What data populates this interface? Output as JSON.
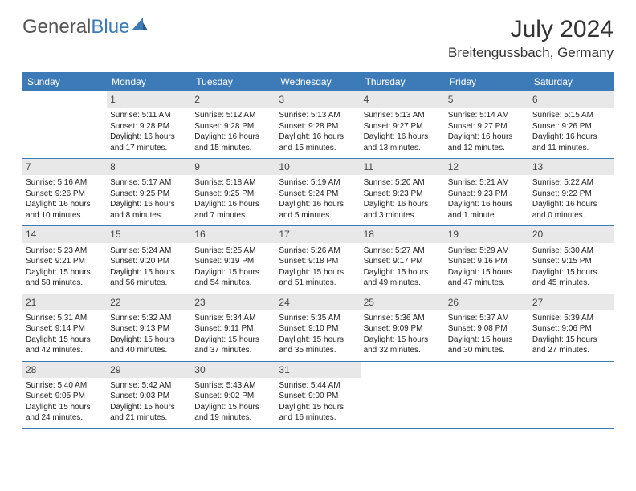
{
  "logo": {
    "word1": "General",
    "word2": "Blue"
  },
  "header": {
    "month_title": "July 2024",
    "location": "Breitengussbach, Germany"
  },
  "day_headers": [
    "Sunday",
    "Monday",
    "Tuesday",
    "Wednesday",
    "Thursday",
    "Friday",
    "Saturday"
  ],
  "colors": {
    "header_bg": "#3d7bb8",
    "header_fg": "#ffffff",
    "border": "#3d7bb8",
    "daynum_bg": "#e8e8e8",
    "text": "#222222",
    "logo_gray": "#555555",
    "logo_blue": "#3d7bb8"
  },
  "weeks": [
    [
      null,
      {
        "n": "1",
        "sunrise": "Sunrise: 5:11 AM",
        "sunset": "Sunset: 9:28 PM",
        "daylight": "Daylight: 16 hours and 17 minutes."
      },
      {
        "n": "2",
        "sunrise": "Sunrise: 5:12 AM",
        "sunset": "Sunset: 9:28 PM",
        "daylight": "Daylight: 16 hours and 15 minutes."
      },
      {
        "n": "3",
        "sunrise": "Sunrise: 5:13 AM",
        "sunset": "Sunset: 9:28 PM",
        "daylight": "Daylight: 16 hours and 15 minutes."
      },
      {
        "n": "4",
        "sunrise": "Sunrise: 5:13 AM",
        "sunset": "Sunset: 9:27 PM",
        "daylight": "Daylight: 16 hours and 13 minutes."
      },
      {
        "n": "5",
        "sunrise": "Sunrise: 5:14 AM",
        "sunset": "Sunset: 9:27 PM",
        "daylight": "Daylight: 16 hours and 12 minutes."
      },
      {
        "n": "6",
        "sunrise": "Sunrise: 5:15 AM",
        "sunset": "Sunset: 9:26 PM",
        "daylight": "Daylight: 16 hours and 11 minutes."
      }
    ],
    [
      {
        "n": "7",
        "sunrise": "Sunrise: 5:16 AM",
        "sunset": "Sunset: 9:26 PM",
        "daylight": "Daylight: 16 hours and 10 minutes."
      },
      {
        "n": "8",
        "sunrise": "Sunrise: 5:17 AM",
        "sunset": "Sunset: 9:25 PM",
        "daylight": "Daylight: 16 hours and 8 minutes."
      },
      {
        "n": "9",
        "sunrise": "Sunrise: 5:18 AM",
        "sunset": "Sunset: 9:25 PM",
        "daylight": "Daylight: 16 hours and 7 minutes."
      },
      {
        "n": "10",
        "sunrise": "Sunrise: 5:19 AM",
        "sunset": "Sunset: 9:24 PM",
        "daylight": "Daylight: 16 hours and 5 minutes."
      },
      {
        "n": "11",
        "sunrise": "Sunrise: 5:20 AM",
        "sunset": "Sunset: 9:23 PM",
        "daylight": "Daylight: 16 hours and 3 minutes."
      },
      {
        "n": "12",
        "sunrise": "Sunrise: 5:21 AM",
        "sunset": "Sunset: 9:23 PM",
        "daylight": "Daylight: 16 hours and 1 minute."
      },
      {
        "n": "13",
        "sunrise": "Sunrise: 5:22 AM",
        "sunset": "Sunset: 9:22 PM",
        "daylight": "Daylight: 16 hours and 0 minutes."
      }
    ],
    [
      {
        "n": "14",
        "sunrise": "Sunrise: 5:23 AM",
        "sunset": "Sunset: 9:21 PM",
        "daylight": "Daylight: 15 hours and 58 minutes."
      },
      {
        "n": "15",
        "sunrise": "Sunrise: 5:24 AM",
        "sunset": "Sunset: 9:20 PM",
        "daylight": "Daylight: 15 hours and 56 minutes."
      },
      {
        "n": "16",
        "sunrise": "Sunrise: 5:25 AM",
        "sunset": "Sunset: 9:19 PM",
        "daylight": "Daylight: 15 hours and 54 minutes."
      },
      {
        "n": "17",
        "sunrise": "Sunrise: 5:26 AM",
        "sunset": "Sunset: 9:18 PM",
        "daylight": "Daylight: 15 hours and 51 minutes."
      },
      {
        "n": "18",
        "sunrise": "Sunrise: 5:27 AM",
        "sunset": "Sunset: 9:17 PM",
        "daylight": "Daylight: 15 hours and 49 minutes."
      },
      {
        "n": "19",
        "sunrise": "Sunrise: 5:29 AM",
        "sunset": "Sunset: 9:16 PM",
        "daylight": "Daylight: 15 hours and 47 minutes."
      },
      {
        "n": "20",
        "sunrise": "Sunrise: 5:30 AM",
        "sunset": "Sunset: 9:15 PM",
        "daylight": "Daylight: 15 hours and 45 minutes."
      }
    ],
    [
      {
        "n": "21",
        "sunrise": "Sunrise: 5:31 AM",
        "sunset": "Sunset: 9:14 PM",
        "daylight": "Daylight: 15 hours and 42 minutes."
      },
      {
        "n": "22",
        "sunrise": "Sunrise: 5:32 AM",
        "sunset": "Sunset: 9:13 PM",
        "daylight": "Daylight: 15 hours and 40 minutes."
      },
      {
        "n": "23",
        "sunrise": "Sunrise: 5:34 AM",
        "sunset": "Sunset: 9:11 PM",
        "daylight": "Daylight: 15 hours and 37 minutes."
      },
      {
        "n": "24",
        "sunrise": "Sunrise: 5:35 AM",
        "sunset": "Sunset: 9:10 PM",
        "daylight": "Daylight: 15 hours and 35 minutes."
      },
      {
        "n": "25",
        "sunrise": "Sunrise: 5:36 AM",
        "sunset": "Sunset: 9:09 PM",
        "daylight": "Daylight: 15 hours and 32 minutes."
      },
      {
        "n": "26",
        "sunrise": "Sunrise: 5:37 AM",
        "sunset": "Sunset: 9:08 PM",
        "daylight": "Daylight: 15 hours and 30 minutes."
      },
      {
        "n": "27",
        "sunrise": "Sunrise: 5:39 AM",
        "sunset": "Sunset: 9:06 PM",
        "daylight": "Daylight: 15 hours and 27 minutes."
      }
    ],
    [
      {
        "n": "28",
        "sunrise": "Sunrise: 5:40 AM",
        "sunset": "Sunset: 9:05 PM",
        "daylight": "Daylight: 15 hours and 24 minutes."
      },
      {
        "n": "29",
        "sunrise": "Sunrise: 5:42 AM",
        "sunset": "Sunset: 9:03 PM",
        "daylight": "Daylight: 15 hours and 21 minutes."
      },
      {
        "n": "30",
        "sunrise": "Sunrise: 5:43 AM",
        "sunset": "Sunset: 9:02 PM",
        "daylight": "Daylight: 15 hours and 19 minutes."
      },
      {
        "n": "31",
        "sunrise": "Sunrise: 5:44 AM",
        "sunset": "Sunset: 9:00 PM",
        "daylight": "Daylight: 15 hours and 16 minutes."
      },
      null,
      null,
      null
    ]
  ]
}
